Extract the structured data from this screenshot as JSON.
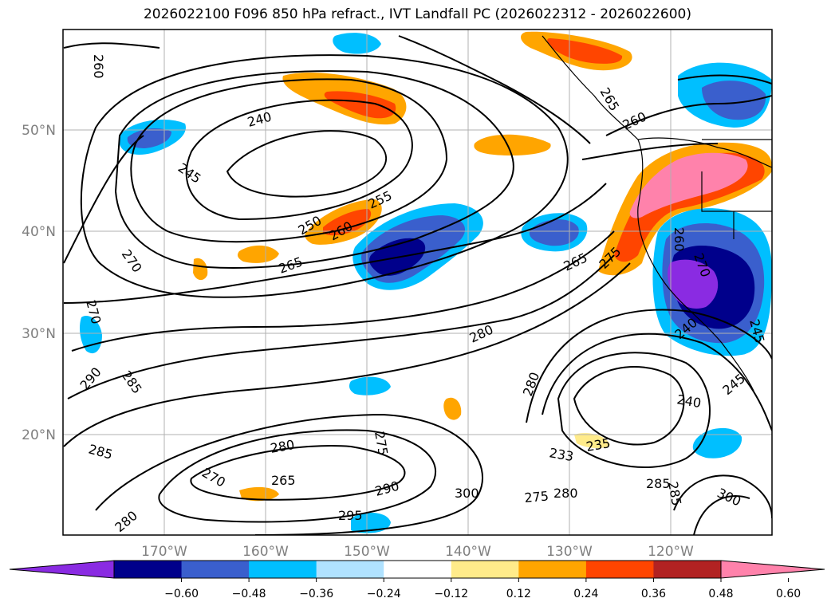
{
  "title": "2026022100 F096 850 hPa refract., IVT Landfall PC (2026022312 - 2026022600)",
  "map": {
    "lat_labels": [
      "50°N",
      "40°N",
      "30°N",
      "20°N"
    ],
    "lon_labels": [
      "170°W",
      "160°W",
      "150°W",
      "140°W",
      "130°W",
      "120°W"
    ],
    "contour_labels": [
      "260",
      "240",
      "245",
      "250",
      "255",
      "260",
      "265",
      "270",
      "270",
      "290",
      "285",
      "280",
      "275",
      "265",
      "270",
      "285",
      "280",
      "290",
      "295",
      "300",
      "265",
      "260",
      "275",
      "280",
      "275",
      "265",
      "280",
      "240",
      "245",
      "235",
      "233",
      "280",
      "285",
      "300",
      "285",
      "260",
      "270",
      "240",
      "245"
    ],
    "gridlines": true
  },
  "colorbar": {
    "ticks": [
      "−0.60",
      "−0.48",
      "−0.36",
      "−0.24",
      "−0.12",
      "0.12",
      "0.24",
      "0.36",
      "0.48",
      "0.60"
    ],
    "colors": [
      "#8a2be2",
      "#00008b",
      "#3a5fcd",
      "#00bfff",
      "#b0e2ff",
      "#ffffff",
      "#ffeb8a",
      "#ffa500",
      "#ff4500",
      "#b22222",
      "#ff82ab"
    ],
    "extend": "both"
  }
}
